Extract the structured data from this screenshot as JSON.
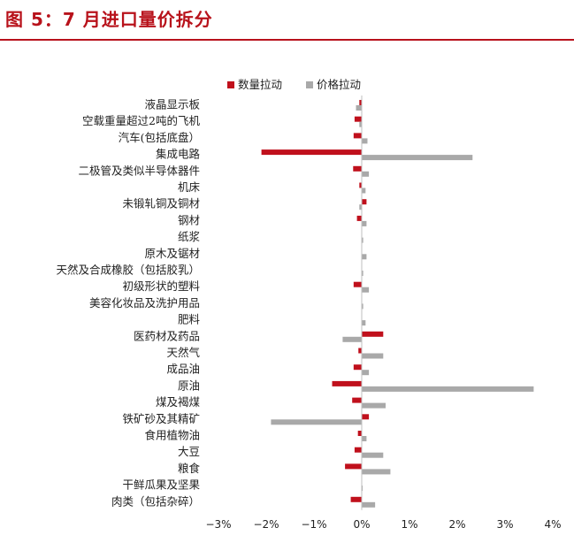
{
  "figure": {
    "title": "图 5：7 月进口量价拆分"
  },
  "chart_data": {
    "type": "bar",
    "orientation": "horizontal",
    "title": "图 5：7 月进口量价拆分",
    "xlim": [
      -3,
      4
    ],
    "x_ticks": [
      -3,
      -2,
      -1,
      0,
      1,
      2,
      3,
      4
    ],
    "x_tick_labels": [
      "−3%",
      "−2%",
      "−1%",
      "0%",
      "1%",
      "2%",
      "3%",
      "4%"
    ],
    "grid": false,
    "legend_position": "top-center",
    "categories": [
      "液晶显示板",
      "空载重量超过2吨的飞机",
      "汽车(包括底盘）",
      "集成电路",
      "二极管及类似半导体器件",
      "机床",
      "未锻轧铜及铜材",
      "钢材",
      "纸浆",
      "原木及锯材",
      "天然及合成橡胶（包括胶乳）",
      "初级形状的塑料",
      "美容化妆品及洗护用品",
      "肥料",
      "医药材及药品",
      "天然气",
      "成品油",
      "原油",
      "煤及褐煤",
      "铁矿砂及其精矿",
      "食用植物油",
      "大豆",
      "粮食",
      "干鲜瓜果及坚果",
      "肉类（包括杂碎）"
    ],
    "series": [
      {
        "name": "数量拉动",
        "color": "#c0101c",
        "values": [
          -0.05,
          -0.15,
          -0.17,
          -2.1,
          -0.18,
          -0.05,
          0.1,
          -0.1,
          0,
          0,
          0,
          -0.17,
          0,
          0,
          0.45,
          -0.07,
          -0.17,
          -0.62,
          -0.2,
          0.15,
          -0.08,
          -0.15,
          -0.35,
          0,
          -0.23
        ]
      },
      {
        "name": "价格拉动",
        "color": "#a9a9a9",
        "values": [
          -0.12,
          -0.05,
          0.12,
          2.32,
          0.15,
          0.08,
          -0.05,
          0.1,
          0.03,
          0.1,
          0.03,
          0.15,
          0.03,
          0.08,
          -0.4,
          0.45,
          0.15,
          3.6,
          0.5,
          -1.9,
          0.1,
          0.45,
          0.6,
          0.02,
          0.28
        ]
      }
    ]
  }
}
